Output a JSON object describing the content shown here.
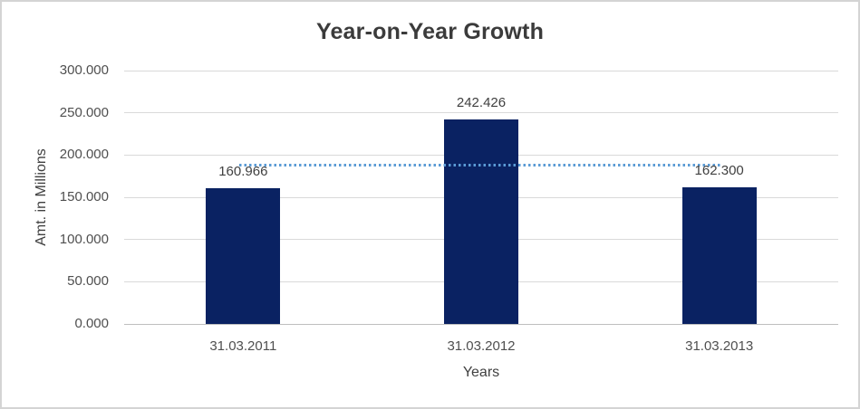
{
  "chart_data": {
    "type": "bar",
    "title": "Year-on-Year Growth",
    "categories": [
      "31.03.2011",
      "31.03.2012",
      "31.03.2013"
    ],
    "values": [
      160.966,
      242.426,
      162.3
    ],
    "data_labels": [
      "160.966",
      "242.426",
      "162.300"
    ],
    "xlabel": "Years",
    "ylabel": "Amt. in Millions",
    "ylim": [
      0,
      300
    ],
    "ytick_step": 50,
    "ytick_labels": [
      "300.000",
      "250.000",
      "200.000",
      "150.000",
      "100.000",
      "50.000",
      "0.000"
    ],
    "grid": true,
    "legend": "none",
    "trendline": {
      "type": "average",
      "value": 188.564,
      "style": "dotted"
    },
    "colors": {
      "bar": "#0A2262",
      "trendline": "#5B9BD5",
      "gridline": "#D9D9D9",
      "axis_line": "#BFBFBF",
      "tick_text": "#4F4F4F",
      "data_label_text": "#404040",
      "axis_title_text": "#404040",
      "title_text": "#3B3B3B",
      "background": "#FFFFFF",
      "border": "#D4D4D4"
    }
  }
}
